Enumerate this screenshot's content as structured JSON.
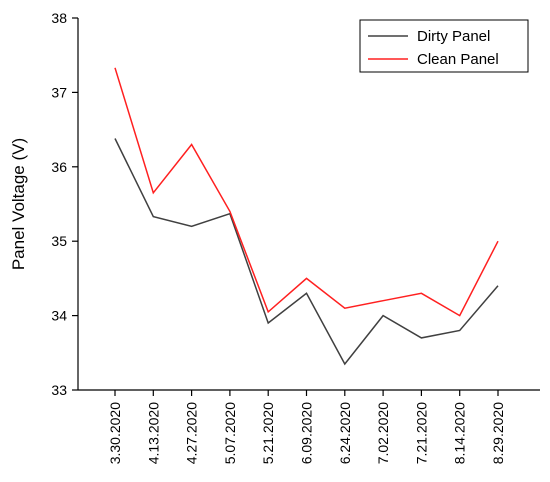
{
  "chart_data": {
    "type": "line",
    "title": "",
    "xlabel": "",
    "ylabel": "Panel Voltage (V)",
    "categories": [
      "3.30.2020",
      "4.13.2020",
      "4.27.2020",
      "5.07.2020",
      "5.21.2020",
      "6.09.2020",
      "6.24.2020",
      "7.02.2020",
      "7.21.2020",
      "8.14.2020",
      "8.29.2020"
    ],
    "ylim": [
      33,
      38
    ],
    "yticks": [
      "33",
      "34",
      "35",
      "36",
      "37",
      "38"
    ],
    "grid": false,
    "legend_position": "top-right",
    "series": [
      {
        "name": "Dirty Panel",
        "color": "#404040",
        "values": [
          36.38,
          35.33,
          35.2,
          35.37,
          33.9,
          34.3,
          33.35,
          34.0,
          33.7,
          33.8,
          34.4
        ]
      },
      {
        "name": "Clean Panel",
        "color": "#ff2020",
        "values": [
          37.33,
          35.65,
          36.3,
          35.4,
          34.05,
          34.5,
          34.1,
          34.2,
          34.3,
          34.0,
          35.0
        ]
      }
    ]
  }
}
